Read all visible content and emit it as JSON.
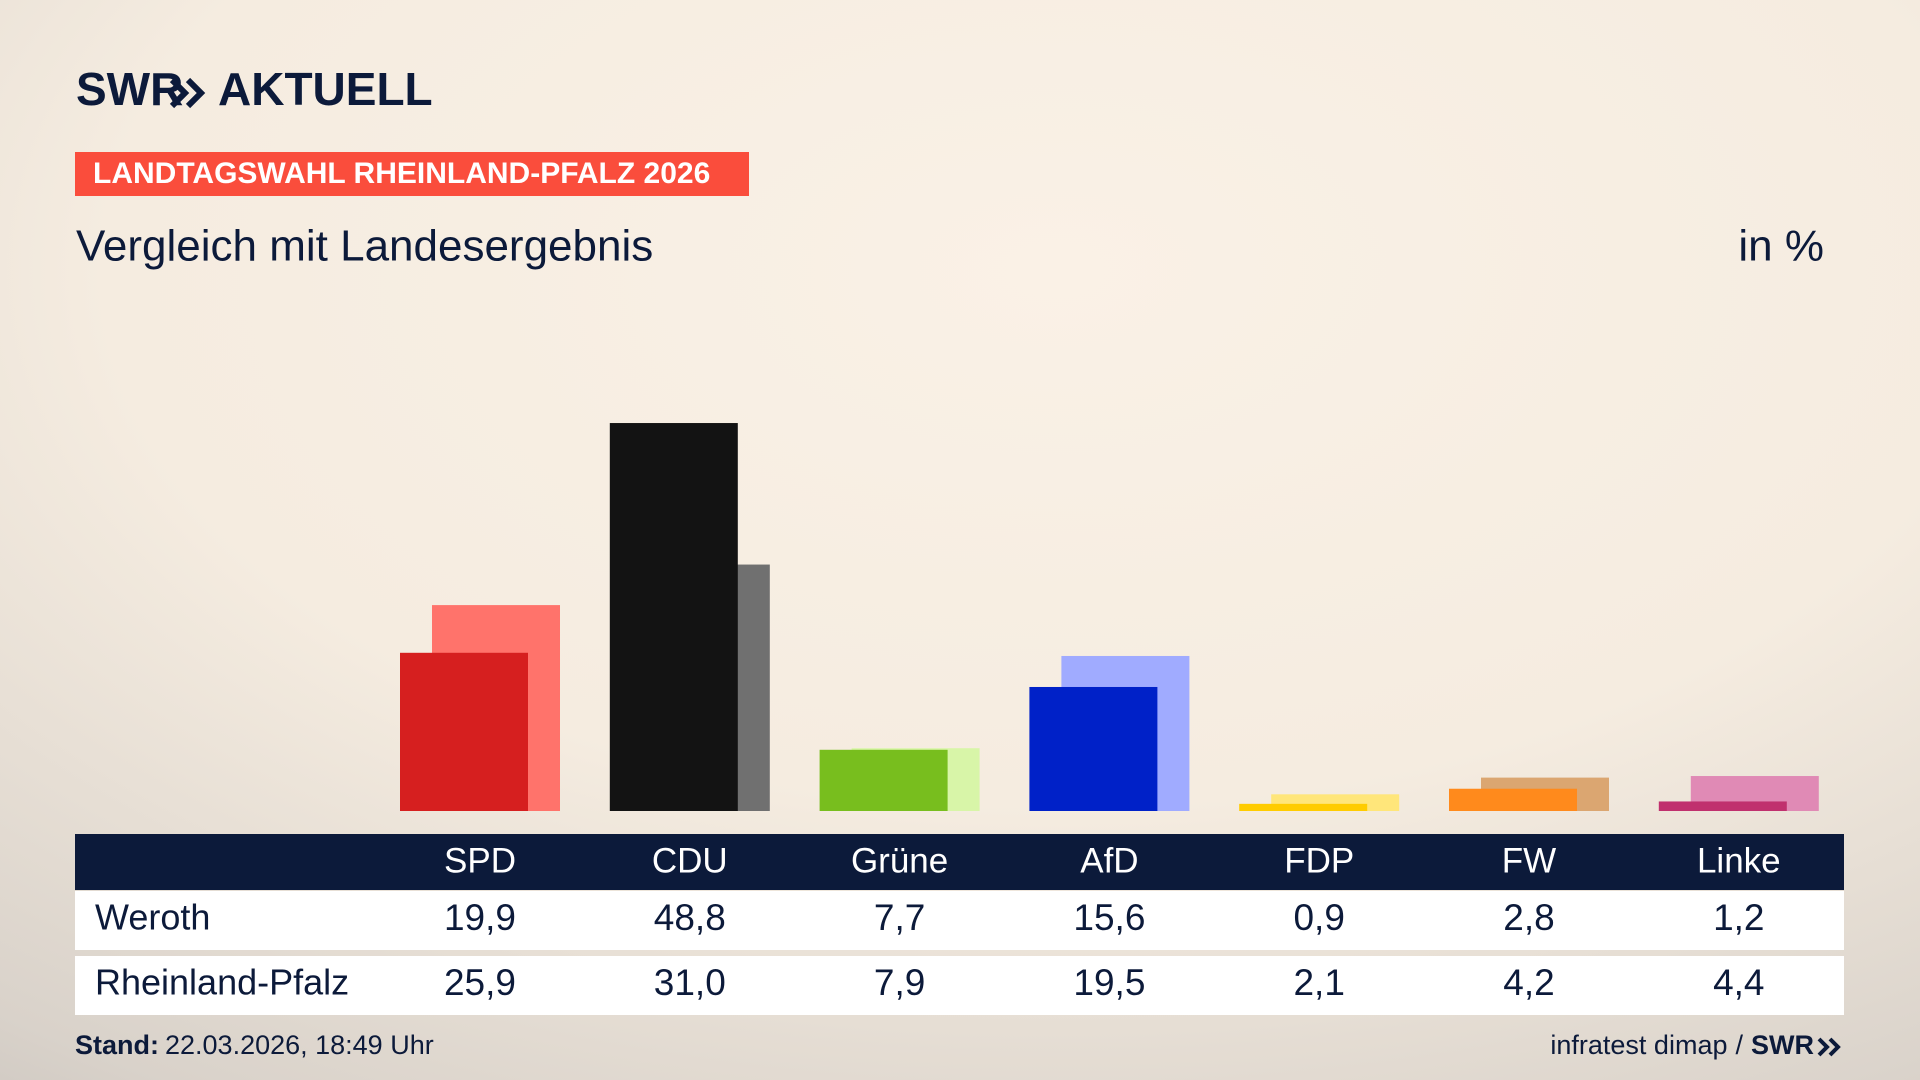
{
  "header": {
    "logo": "SWR",
    "brand": "AKTUELL",
    "banner": "LANDTAGSWAHL RHEINLAND-PFALZ 2026"
  },
  "chart_data": {
    "type": "bar",
    "title": "Vergleich mit Landesergebnis",
    "unit": "in %",
    "categories": [
      "SPD",
      "CDU",
      "Grüne",
      "AfD",
      "FDP",
      "FW",
      "Linke"
    ],
    "series": [
      {
        "name": "Weroth",
        "colors": [
          "#d61f1f",
          "#131313",
          "#78be1e",
          "#0021c8",
          "#ffcc00",
          "#ff8a1c",
          "#c0306e"
        ],
        "values": [
          19.9,
          48.8,
          7.7,
          15.6,
          0.9,
          2.8,
          1.2
        ],
        "value_labels": [
          "19,9",
          "48,8",
          "7,7",
          "15,6",
          "0,9",
          "2,8",
          "1,2"
        ]
      },
      {
        "name": "Rheinland-Pfalz",
        "colors": [
          "#ff736b",
          "#707070",
          "#d8f5a8",
          "#a0abff",
          "#ffe67a",
          "#dba671",
          "#e08ab5"
        ],
        "values": [
          25.9,
          31.0,
          7.9,
          19.5,
          2.1,
          4.2,
          4.4
        ],
        "value_labels": [
          "25,9",
          "31,0",
          "7,9",
          "19,5",
          "2,1",
          "4,2",
          "4,4"
        ]
      }
    ]
  },
  "footer": {
    "stand_label": "Stand:",
    "stand": "22.03.2026, 18:49 Uhr",
    "source": "infratest dimap",
    "separator": "/",
    "logo": "SWR"
  }
}
